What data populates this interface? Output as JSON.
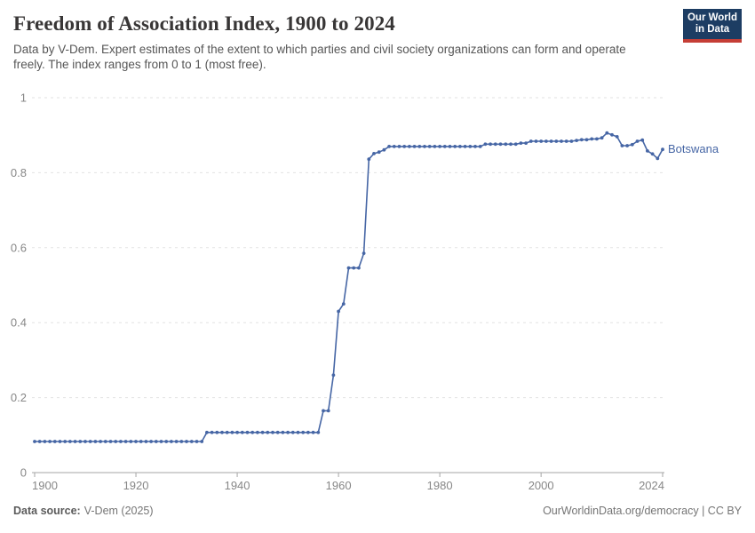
{
  "header": {
    "title": "Freedom of Association Index, 1900 to 2024",
    "subtitle": "Data by V-Dem. Expert estimates of the extent to which parties and civil society organizations can form and operate freely. The index ranges from 0 to 1 (most free).",
    "logo": {
      "line1": "Our World",
      "line2": "in Data",
      "bg_color": "#1d3d63",
      "bar_color": "#c53e36"
    }
  },
  "footer": {
    "source_label": "Data source:",
    "source_value": "V-Dem (2025)",
    "right_text": "OurWorldinData.org/democracy | CC BY"
  },
  "chart_data": {
    "type": "line",
    "title": "Freedom of Association Index, 1900 to 2024",
    "xlabel": "",
    "ylabel": "",
    "xlim": [
      1900,
      2024
    ],
    "ylim": [
      0,
      1
    ],
    "x_ticks": [
      1900,
      1920,
      1940,
      1960,
      1980,
      2000,
      2024
    ],
    "y_ticks": [
      0,
      0.2,
      0.4,
      0.6,
      0.8,
      1
    ],
    "grid": "horizontal-dashed",
    "legend_position": "end-of-line-label",
    "colors": {
      "line": "#4666a5",
      "gridline": "#e2e2e2",
      "axis": "#a5a5a5",
      "tick_label": "#878787"
    },
    "series": [
      {
        "name": "Botswana",
        "color": "#4666a5",
        "start_year": 1900,
        "end_year": 2024,
        "values": [
          0.083,
          0.083,
          0.083,
          0.083,
          0.083,
          0.083,
          0.083,
          0.083,
          0.083,
          0.083,
          0.083,
          0.083,
          0.083,
          0.083,
          0.083,
          0.083,
          0.083,
          0.083,
          0.083,
          0.083,
          0.083,
          0.083,
          0.083,
          0.083,
          0.083,
          0.083,
          0.083,
          0.083,
          0.083,
          0.083,
          0.083,
          0.083,
          0.083,
          0.083,
          0.107,
          0.107,
          0.107,
          0.107,
          0.107,
          0.107,
          0.107,
          0.107,
          0.107,
          0.107,
          0.107,
          0.107,
          0.107,
          0.107,
          0.107,
          0.107,
          0.107,
          0.107,
          0.107,
          0.107,
          0.107,
          0.107,
          0.107,
          0.165,
          0.165,
          0.26,
          0.43,
          0.45,
          0.546,
          0.546,
          0.546,
          0.585,
          0.836,
          0.851,
          0.855,
          0.861,
          0.87,
          0.87,
          0.87,
          0.87,
          0.87,
          0.87,
          0.87,
          0.87,
          0.87,
          0.87,
          0.87,
          0.87,
          0.87,
          0.87,
          0.87,
          0.87,
          0.87,
          0.87,
          0.87,
          0.876,
          0.876,
          0.876,
          0.876,
          0.876,
          0.876,
          0.876,
          0.879,
          0.879,
          0.884,
          0.884,
          0.884,
          0.884,
          0.884,
          0.884,
          0.884,
          0.884,
          0.884,
          0.886,
          0.888,
          0.888,
          0.89,
          0.89,
          0.893,
          0.906,
          0.901,
          0.896,
          0.872,
          0.872,
          0.875,
          0.884,
          0.887,
          0.858,
          0.85,
          0.838,
          0.862
        ]
      }
    ]
  }
}
